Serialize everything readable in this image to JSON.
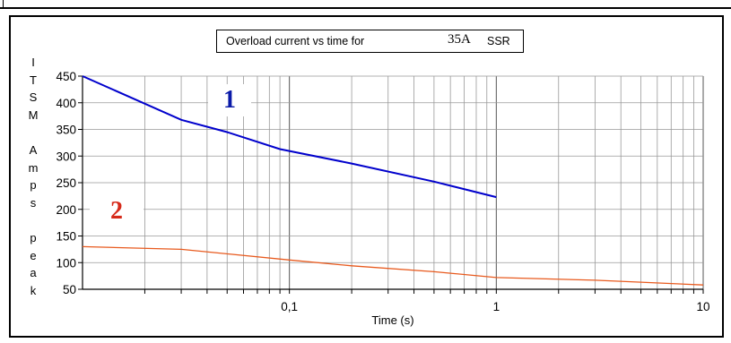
{
  "chart_data": {
    "type": "line",
    "title_prefix": "Overload current vs time for",
    "title_rating": "35A",
    "title_suffix": "SSR",
    "xlabel": "Time (s)",
    "ylabel_letters": [
      "I",
      "T",
      "S",
      "M",
      "",
      "A",
      "m",
      "p",
      "s",
      "",
      "p",
      "e",
      "a",
      "k"
    ],
    "x_scale": "log",
    "xlim": [
      0.01,
      10
    ],
    "ylim": [
      50,
      450
    ],
    "x_tick_labels": [
      {
        "value": 0.1,
        "label": "0,1"
      },
      {
        "value": 1,
        "label": "1"
      },
      {
        "value": 10,
        "label": "10"
      }
    ],
    "y_ticks": [
      50,
      100,
      150,
      200,
      250,
      300,
      350,
      400,
      450
    ],
    "grid": true,
    "series": [
      {
        "name": "1",
        "color": "#0000cc",
        "points": [
          [
            0.01,
            450
          ],
          [
            0.03,
            368
          ],
          [
            0.05,
            345
          ],
          [
            0.09,
            313
          ],
          [
            0.2,
            286
          ],
          [
            0.5,
            252
          ],
          [
            1.0,
            223
          ]
        ]
      },
      {
        "name": "2",
        "color": "#e85a1e",
        "points": [
          [
            0.01,
            130
          ],
          [
            0.03,
            125
          ],
          [
            0.1,
            105
          ],
          [
            0.2,
            94
          ],
          [
            0.5,
            83
          ],
          [
            1.0,
            72
          ],
          [
            3.0,
            67
          ],
          [
            10.0,
            58
          ]
        ]
      }
    ]
  },
  "labels": {
    "series1_badge": "1",
    "series2_badge": "2"
  }
}
